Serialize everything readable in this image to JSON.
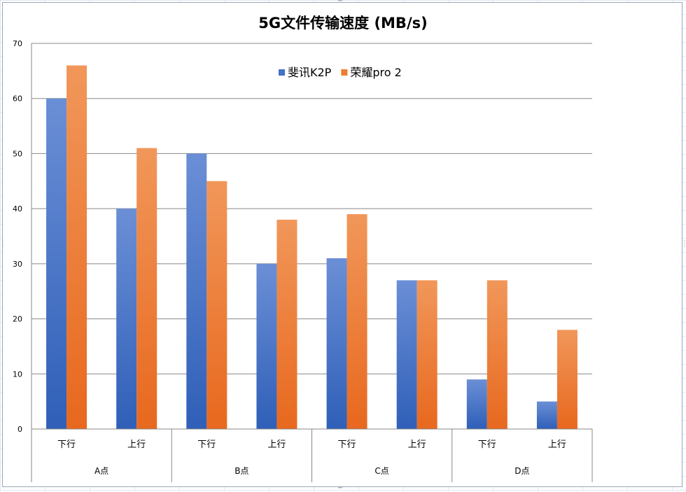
{
  "chart_data": {
    "type": "bar",
    "title": "5G文件传输速度 (MB/s)",
    "xlabel": "",
    "ylabel": "",
    "ylim": [
      0,
      70
    ],
    "yticks": [
      0,
      10,
      20,
      30,
      40,
      50,
      60,
      70
    ],
    "grid": true,
    "legend_position": "top-center",
    "groups": [
      {
        "label": "A点",
        "categories": [
          "下行",
          "上行"
        ]
      },
      {
        "label": "B点",
        "categories": [
          "下行",
          "上行"
        ]
      },
      {
        "label": "C点",
        "categories": [
          "下行",
          "上行"
        ]
      },
      {
        "label": "D点",
        "categories": [
          "下行",
          "上行"
        ]
      }
    ],
    "categories": [
      "下行",
      "上行",
      "下行",
      "上行",
      "下行",
      "上行",
      "下行",
      "上行"
    ],
    "series": [
      {
        "name": "斐讯K2P",
        "color": "#4472c4",
        "values": [
          60,
          40,
          50,
          30,
          31,
          27,
          9,
          5
        ]
      },
      {
        "name": "荣耀pro 2",
        "color": "#ed7d31",
        "values": [
          66,
          51,
          45,
          38,
          39,
          27,
          27,
          18
        ]
      }
    ]
  }
}
